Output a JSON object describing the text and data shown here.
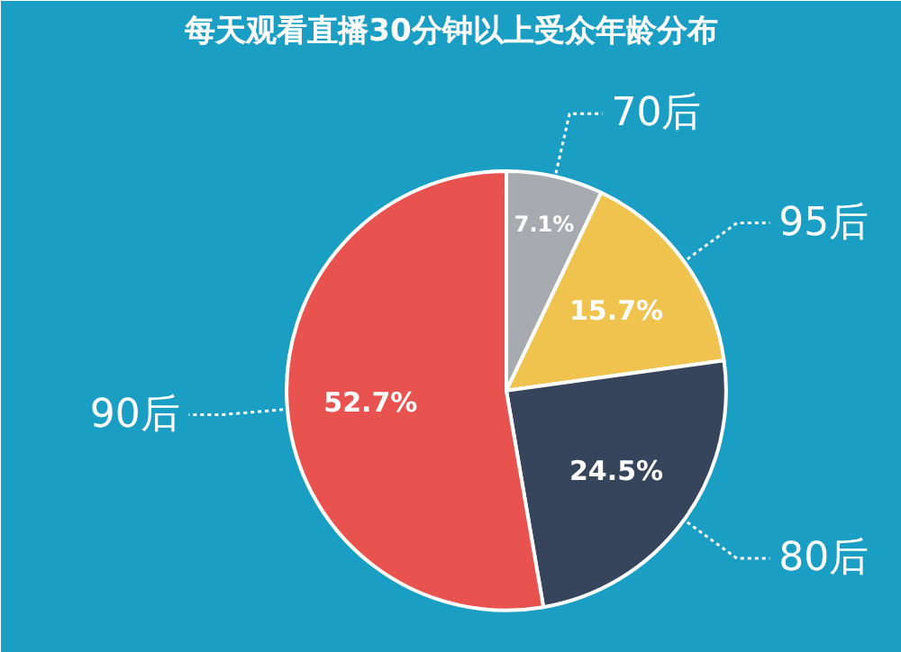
{
  "chart_data": {
    "type": "pie",
    "title": "每天观看直播30分钟以上受众年龄分布",
    "categories": [
      "70后",
      "95后",
      "80后",
      "90后"
    ],
    "values": [
      7.1,
      15.7,
      24.5,
      52.7
    ],
    "value_labels": [
      "7.1%",
      "15.7%",
      "24.5%",
      "52.7%"
    ],
    "colors": [
      "#a7abaf",
      "#f0c24e",
      "#36445c",
      "#e8534f"
    ]
  }
}
